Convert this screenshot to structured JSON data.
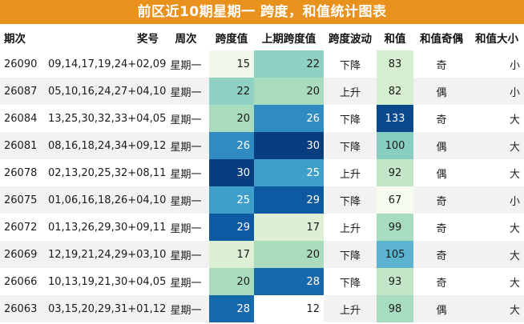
{
  "title": "前区近10期星期一 跨度，和值统计图表",
  "columns": [
    "期次",
    "奖号",
    "周次",
    "跨度值",
    "上期跨度值",
    "跨度波动",
    "和值",
    "和值奇偶",
    "和值大小"
  ],
  "rows": [
    {
      "period": "26090",
      "numbers": "09,14,17,19,24+02,09",
      "weekday": "星期一",
      "span": "15",
      "prev_span": "22",
      "trend": "下降",
      "sum": "83",
      "parity": "奇",
      "size": "小"
    },
    {
      "period": "26087",
      "numbers": "05,10,16,24,27+04,10",
      "weekday": "星期一",
      "span": "22",
      "prev_span": "20",
      "trend": "上升",
      "sum": "82",
      "parity": "偶",
      "size": "小"
    },
    {
      "period": "26084",
      "numbers": "13,25,30,32,33+04,05",
      "weekday": "星期一",
      "span": "20",
      "prev_span": "26",
      "trend": "下降",
      "sum": "133",
      "parity": "奇",
      "size": "大"
    },
    {
      "period": "26081",
      "numbers": "08,16,18,24,34+09,12",
      "weekday": "星期一",
      "span": "26",
      "prev_span": "30",
      "trend": "下降",
      "sum": "100",
      "parity": "偶",
      "size": "大"
    },
    {
      "period": "26078",
      "numbers": "02,13,20,25,32+08,11",
      "weekday": "星期一",
      "span": "30",
      "prev_span": "25",
      "trend": "上升",
      "sum": "92",
      "parity": "偶",
      "size": "大"
    },
    {
      "period": "26075",
      "numbers": "01,06,16,18,26+04,10",
      "weekday": "星期一",
      "span": "25",
      "prev_span": "29",
      "trend": "下降",
      "sum": "67",
      "parity": "奇",
      "size": "小"
    },
    {
      "period": "26072",
      "numbers": "01,13,26,29,30+09,11",
      "weekday": "星期一",
      "span": "29",
      "prev_span": "17",
      "trend": "上升",
      "sum": "99",
      "parity": "奇",
      "size": "大"
    },
    {
      "period": "26069",
      "numbers": "12,19,21,24,29+03,10",
      "weekday": "星期一",
      "span": "17",
      "prev_span": "20",
      "trend": "下降",
      "sum": "105",
      "parity": "奇",
      "size": "大"
    },
    {
      "period": "26066",
      "numbers": "10,13,19,21,30+04,05",
      "weekday": "星期一",
      "span": "20",
      "prev_span": "28",
      "trend": "下降",
      "sum": "93",
      "parity": "奇",
      "size": "大"
    },
    {
      "period": "26063",
      "numbers": "03,15,20,29,31+01,12",
      "weekday": "星期一",
      "span": "28",
      "prev_span": "12",
      "trend": "上升",
      "sum": "98",
      "parity": "偶",
      "size": "大"
    }
  ],
  "colors": {
    "title_bg": "#e8911c",
    "title_text": "#ffffff",
    "stripe": "#f2f2f2",
    "span_scale": [
      {
        "max": 12,
        "bg": "#ffffff",
        "fg": "#1a1a1a"
      },
      {
        "max": 15,
        "bg": "#f1f8ec",
        "fg": "#1a1a1a"
      },
      {
        "max": 17,
        "bg": "#ddf0d6",
        "fg": "#1a1a1a"
      },
      {
        "max": 20,
        "bg": "#a9dcbc",
        "fg": "#1a1a1a"
      },
      {
        "max": 22,
        "bg": "#8fd1c3",
        "fg": "#1a1a1a"
      },
      {
        "max": 25,
        "bg": "#3f9fcb",
        "fg": "#ffffff"
      },
      {
        "max": 26,
        "bg": "#2f8cc2",
        "fg": "#ffffff"
      },
      {
        "max": 28,
        "bg": "#1769ad",
        "fg": "#ffffff"
      },
      {
        "max": 29,
        "bg": "#0d5aa2",
        "fg": "#ffffff"
      },
      {
        "max": 30,
        "bg": "#083d80",
        "fg": "#ffffff"
      }
    ],
    "sum_scale": [
      {
        "max": 67,
        "bg": "#f7fcf0",
        "fg": "#1a1a1a"
      },
      {
        "max": 83,
        "bg": "#d6efd1",
        "fg": "#1a1a1a"
      },
      {
        "max": 93,
        "bg": "#c2e6c7",
        "fg": "#1a1a1a"
      },
      {
        "max": 99,
        "bg": "#a8dcc0",
        "fg": "#1a1a1a"
      },
      {
        "max": 100,
        "bg": "#87cdc0",
        "fg": "#1a1a1a"
      },
      {
        "max": 105,
        "bg": "#5bb3cf",
        "fg": "#1a1a1a"
      },
      {
        "max": 133,
        "bg": "#0a4a8c",
        "fg": "#ffffff"
      }
    ]
  }
}
